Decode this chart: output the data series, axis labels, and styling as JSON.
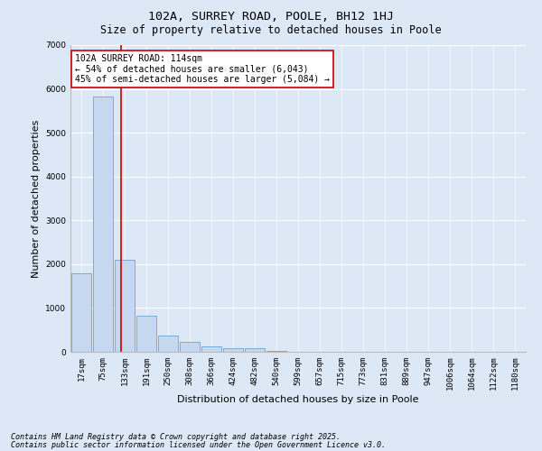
{
  "title": "102A, SURREY ROAD, POOLE, BH12 1HJ",
  "subtitle": "Size of property relative to detached houses in Poole",
  "xlabel": "Distribution of detached houses by size in Poole",
  "ylabel": "Number of detached properties",
  "bar_color": "#c5d8f0",
  "bar_edge_color": "#7aadd4",
  "background_color": "#dce8f5",
  "grid_color": "#ffffff",
  "categories": [
    "17sqm",
    "75sqm",
    "133sqm",
    "191sqm",
    "250sqm",
    "308sqm",
    "366sqm",
    "424sqm",
    "482sqm",
    "540sqm",
    "599sqm",
    "657sqm",
    "715sqm",
    "773sqm",
    "831sqm",
    "889sqm",
    "947sqm",
    "1006sqm",
    "1064sqm",
    "1122sqm",
    "1180sqm"
  ],
  "values": [
    1800,
    5820,
    2090,
    830,
    370,
    230,
    130,
    80,
    80,
    30,
    10,
    0,
    0,
    0,
    0,
    0,
    0,
    0,
    0,
    0,
    0
  ],
  "ylim": [
    0,
    7000
  ],
  "yticks": [
    0,
    1000,
    2000,
    3000,
    4000,
    5000,
    6000,
    7000
  ],
  "vline_pos": 1.85,
  "vline_color": "#cc0000",
  "annotation_text": "102A SURREY ROAD: 114sqm\n← 54% of detached houses are smaller (6,043)\n45% of semi-detached houses are larger (5,084) →",
  "annotation_box_color": "#ffffff",
  "annotation_box_edge_color": "#cc0000",
  "footer_line1": "Contains HM Land Registry data © Crown copyright and database right 2025.",
  "footer_line2": "Contains public sector information licensed under the Open Government Licence v3.0.",
  "title_fontsize": 9.5,
  "subtitle_fontsize": 8.5,
  "tick_fontsize": 6.5,
  "label_fontsize": 8,
  "annotation_fontsize": 7,
  "footer_fontsize": 6
}
